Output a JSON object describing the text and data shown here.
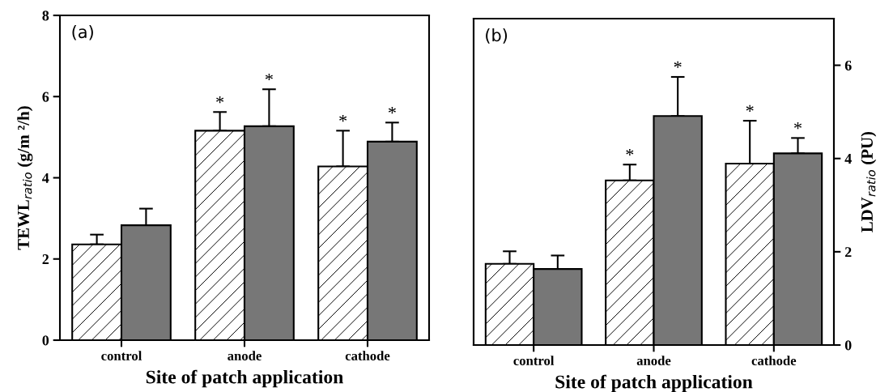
{
  "chart_data": [
    {
      "type": "bar",
      "categories": [
        "control",
        "anode",
        "cathode"
      ],
      "xlabel": "Site of patch application",
      "ylabel": "TEWL$_{ratio}$ (g/m ²/h)",
      "ylim": [
        0,
        8
      ],
      "yticks": [
        0,
        2,
        4,
        6,
        8
      ],
      "series": [
        {
          "color": "#ffffff",
          "values": [
            2.36,
            5.16,
            4.28
          ],
          "errors": [
            [
              2.36,
              2.6
            ],
            [
              5.16,
              5.62
            ],
            [
              4.28,
              5.16
            ]
          ],
          "value_labels": [
            null,
            "*",
            "*"
          ]
        },
        {
          "color": "#777777",
          "values": [
            2.83,
            5.27,
            4.89
          ],
          "errors": [
            [
              2.83,
              3.24
            ],
            [
              5.27,
              6.18
            ],
            [
              4.89,
              5.36
            ]
          ],
          "value_labels": [
            null,
            "*",
            "*"
          ]
        }
      ],
      "annotations": [
        "(a)"
      ]
    },
    {
      "type": "bar",
      "categories": [
        "control",
        "anode",
        "cathode"
      ],
      "xlabel": "Site of patch application",
      "y2label": "LDV$_{ratio}$ (PU)",
      "y2lim": [
        0,
        7
      ],
      "y2ticks": [
        0,
        2,
        4,
        6
      ],
      "series": [
        {
          "color": "#ffffff",
          "axis": "y2",
          "values": [
            1.74,
            3.53,
            3.89
          ],
          "errors": [
            [
              1.74,
              2.01
            ],
            [
              3.53,
              3.87
            ],
            [
              3.89,
              4.81
            ]
          ],
          "value_labels": [
            null,
            "*",
            "*"
          ]
        },
        {
          "color": "#777777",
          "axis": "y2",
          "values": [
            1.63,
            4.91,
            4.11
          ],
          "errors": [
            [
              1.63,
              1.92
            ],
            [
              4.91,
              5.75
            ],
            [
              4.11,
              4.44
            ]
          ],
          "value_labels": [
            null,
            "*",
            "*"
          ]
        }
      ],
      "annotations": [
        "(b)"
      ]
    }
  ]
}
